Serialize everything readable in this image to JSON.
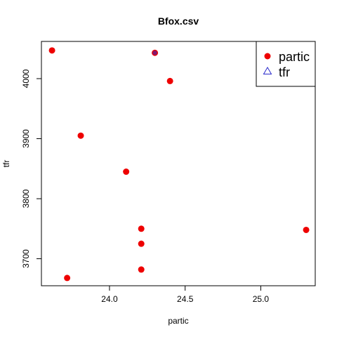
{
  "chart_data": {
    "type": "scatter",
    "title": "Bfox.csv",
    "xlabel": "partic",
    "ylabel": "tfr",
    "xlim": [
      23.55,
      25.36
    ],
    "ylim": [
      3655,
      4062
    ],
    "x_ticks": [
      24.0,
      24.5,
      25.0
    ],
    "x_tick_labels": [
      "24.0",
      "24.5",
      "25.0"
    ],
    "y_ticks": [
      3700,
      3800,
      3900,
      4000
    ],
    "y_tick_labels": [
      "3700",
      "3800",
      "3900",
      "4000"
    ],
    "grid": false,
    "legend_position": "top-right",
    "series": [
      {
        "name": "partic",
        "marker": "filled-circle",
        "color": "#ee0000",
        "points": [
          {
            "x": 23.62,
            "y": 4047
          },
          {
            "x": 24.3,
            "y": 4043
          },
          {
            "x": 24.4,
            "y": 3996
          },
          {
            "x": 23.81,
            "y": 3905
          },
          {
            "x": 24.11,
            "y": 3845
          },
          {
            "x": 24.21,
            "y": 3750
          },
          {
            "x": 24.21,
            "y": 3725
          },
          {
            "x": 24.21,
            "y": 3682
          },
          {
            "x": 23.72,
            "y": 3668
          },
          {
            "x": 25.3,
            "y": 3748
          }
        ]
      },
      {
        "name": "tfr",
        "marker": "open-triangle",
        "color": "#2a2acc",
        "points": [
          {
            "x": 24.3,
            "y": 4043
          }
        ]
      }
    ]
  }
}
